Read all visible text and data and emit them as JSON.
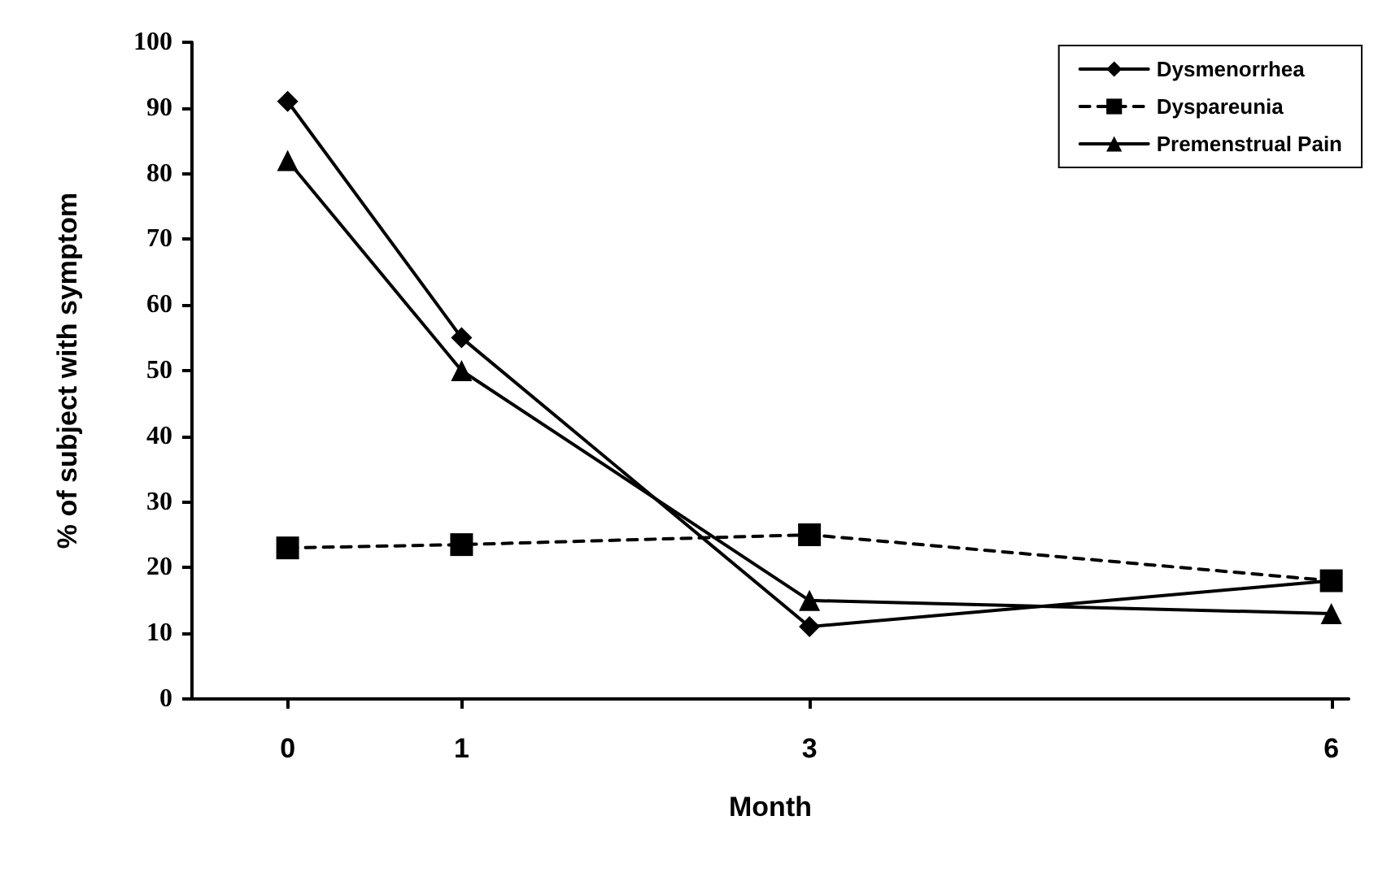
{
  "chart_data": {
    "type": "line",
    "xlabel": "Month",
    "ylabel": "% of subject with symptom",
    "x": [
      0,
      1,
      3,
      6
    ],
    "series": [
      {
        "name": "Dysmenorrhea",
        "color": "#000000",
        "marker": "diamond",
        "line_style": "solid",
        "values": [
          91,
          55,
          11,
          18
        ]
      },
      {
        "name": "Dyspareunia",
        "color": "#000000",
        "marker": "square",
        "line_style": "dashed",
        "values": [
          23,
          23.5,
          25,
          18
        ]
      },
      {
        "name": "Premenstrual Pain",
        "color": "#000000",
        "marker": "triangle",
        "line_style": "solid",
        "values": [
          82,
          50,
          15,
          13
        ]
      }
    ],
    "xlim": [
      -0.55,
      6.1
    ],
    "xticks": [
      0,
      1,
      3,
      6
    ],
    "ylim": [
      0,
      100
    ],
    "yticks": [
      0,
      10,
      20,
      30,
      40,
      50,
      60,
      70,
      80,
      90,
      100
    ],
    "grid": false,
    "legend": "top right"
  }
}
